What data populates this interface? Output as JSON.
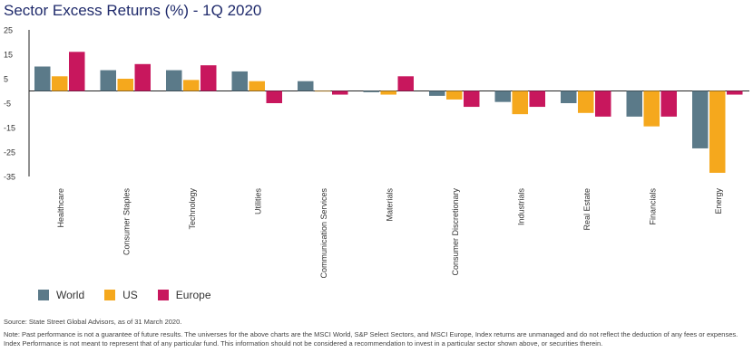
{
  "title": "Sector Excess Returns (%) - 1Q 2020",
  "colors": {
    "World": "#5b7a89",
    "US": "#f5a81d",
    "Europe": "#c8175d"
  },
  "chart_data": {
    "type": "bar",
    "categories": [
      "Healthcare",
      "Consumer Staples",
      "Technology",
      "Utilities",
      "Communication Services",
      "Materials",
      "Consumer Discretionary",
      "Industrials",
      "Real Estate",
      "Financials",
      "Energy"
    ],
    "series": [
      {
        "name": "World",
        "values": [
          10,
          8.5,
          8.5,
          8,
          4,
          -0.5,
          -2,
          -4.5,
          -5,
          -10.5,
          -23.5
        ]
      },
      {
        "name": "US",
        "values": [
          6,
          5,
          4.5,
          4,
          0,
          -1.5,
          -3.5,
          -9.5,
          -9,
          -14.5,
          -33.5
        ]
      },
      {
        "name": "Europe",
        "values": [
          16,
          11,
          10.5,
          -5,
          -1.5,
          6,
          -6.5,
          -6.5,
          -10.5,
          -10.5,
          -1.5
        ]
      }
    ],
    "yticks": [
      "25",
      "15",
      "5",
      "-5",
      "-15",
      "-25",
      "-35"
    ],
    "ylim": [
      -35,
      25
    ],
    "legend_position": "bottom-left"
  },
  "legend": [
    {
      "label": "World",
      "color": "#5b7a89"
    },
    {
      "label": "US",
      "color": "#f5a81d"
    },
    {
      "label": "Europe",
      "color": "#c8175d"
    }
  ],
  "source": "Source: State Street Global Advisors, as of 31 March 2020.",
  "note": "Note: Past performance is not a guarantee of future results. The universes for the above charts are the MSCI World, S&P Select Sectors, and MSCI Europe, Index returns are unmanaged and do not reflect the deduction of any fees or expenses. Index Performance is not meant to represent that of any particular fund. This information should not be considered a recommendation to invest in a particular sector shown above, or securities therein."
}
